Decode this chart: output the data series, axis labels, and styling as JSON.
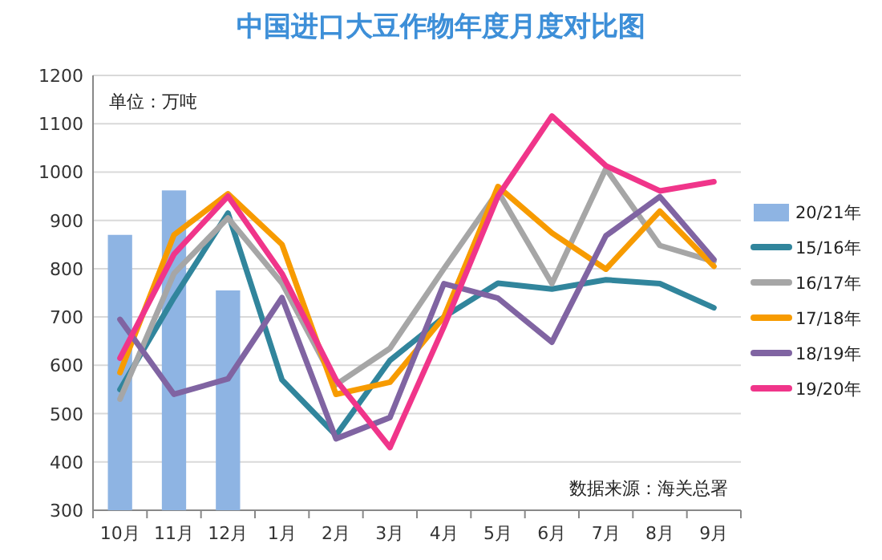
{
  "chart_data": {
    "type": "line",
    "title": "中国进口大豆作物年度月度对比图",
    "categories": [
      "10月",
      "11月",
      "12月",
      "1月",
      "2月",
      "3月",
      "4月",
      "5月",
      "6月",
      "7月",
      "8月",
      "9月"
    ],
    "series": [
      {
        "name": "20/21年",
        "type": "bar",
        "color": "#8eb4e3",
        "values": [
          870,
          962,
          755,
          null,
          null,
          null,
          null,
          null,
          null,
          null,
          null,
          null
        ]
      },
      {
        "name": "15/16年",
        "color": "#31859c",
        "values": [
          550,
          740,
          915,
          570,
          455,
          610,
          700,
          770,
          758,
          777,
          769,
          719
        ]
      },
      {
        "name": "16/17年",
        "color": "#a6a6a6",
        "values": [
          530,
          790,
          905,
          770,
          560,
          635,
          800,
          960,
          769,
          1007,
          848,
          815
        ]
      },
      {
        "name": "17/18年",
        "color": "#f79b00",
        "values": [
          585,
          870,
          955,
          850,
          540,
          565,
          700,
          970,
          874,
          799,
          919,
          805
        ]
      },
      {
        "name": "18/19年",
        "color": "#8064a2",
        "values": [
          695,
          540,
          572,
          740,
          448,
          492,
          769,
          739,
          648,
          868,
          949,
          819
        ]
      },
      {
        "name": "19/20年",
        "color": "#f0358a",
        "values": [
          615,
          830,
          950,
          790,
          570,
          430,
          680,
          950,
          1116,
          1013,
          961,
          980
        ]
      }
    ],
    "ylim": [
      300,
      1200
    ],
    "yticks": [
      300,
      400,
      500,
      600,
      700,
      800,
      900,
      1000,
      1100,
      1200
    ],
    "grid": "y",
    "legend": "right",
    "marker": "none",
    "line_style": "solid",
    "annotations": [
      "单位：万吨",
      "数据来源：海关总署"
    ]
  }
}
